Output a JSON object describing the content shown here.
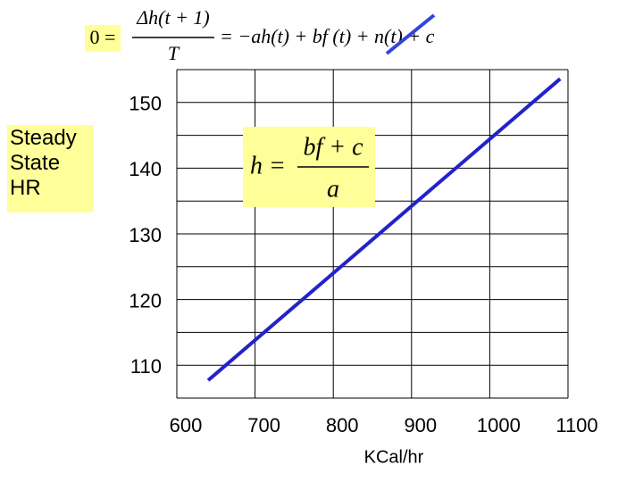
{
  "chart_data": {
    "type": "line",
    "equation": {
      "lhs": "0 =",
      "numerator": "Δh(t + 1)",
      "denominator": "T",
      "rhs": "= −ah(t) + bf (t) + n(t) + c"
    },
    "formula": {
      "lhs": "h =",
      "numerator": "bf + c",
      "denominator": "a"
    },
    "ylabel": "Steady State HR",
    "xlabel": "KCal/hr",
    "x": [
      640,
      1090
    ],
    "series": [
      {
        "color": "#2222cc",
        "values": [
          107.7,
          153.6
        ]
      }
    ],
    "xlim": [
      600,
      1100
    ],
    "xticks": [
      600,
      700,
      800,
      900,
      1000,
      1100
    ],
    "ylim": [
      105,
      155
    ],
    "yticks": [
      110,
      120,
      130,
      140,
      150
    ],
    "y_minor_ticks": [
      105,
      115,
      125,
      135,
      145,
      155
    ],
    "grid": true
  }
}
